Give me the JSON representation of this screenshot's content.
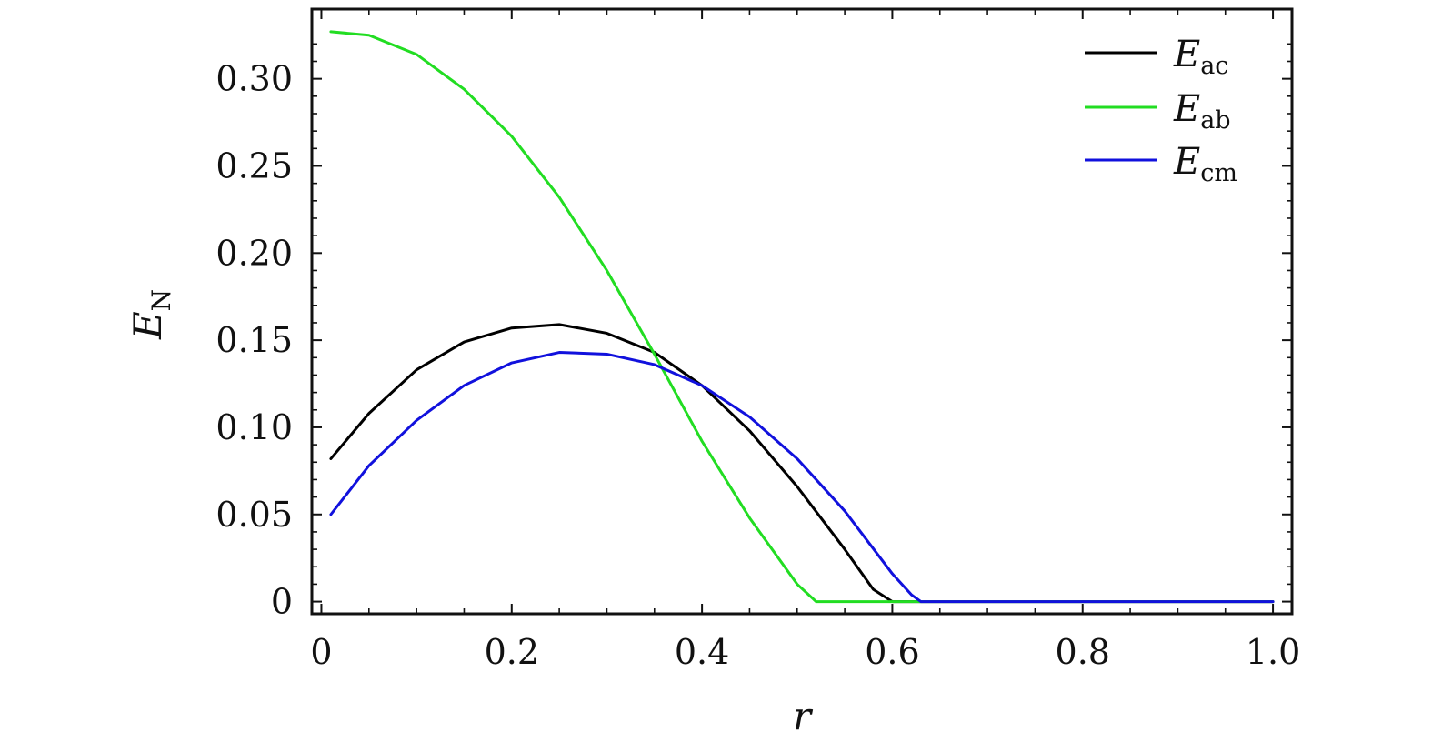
{
  "chart_data": {
    "type": "line",
    "xlabel": "r",
    "ylabel": {
      "main": "E",
      "sub": "N"
    },
    "xlim": [
      -0.01,
      1.02
    ],
    "ylim": [
      -0.007,
      0.34
    ],
    "xticks": [
      0,
      0.2,
      0.4,
      0.6,
      0.8,
      1.0
    ],
    "xtick_labels": [
      "0",
      "0.2",
      "0.4",
      "0.6",
      "0.8",
      "1.0"
    ],
    "yticks": [
      0,
      0.05,
      0.1,
      0.15,
      0.2,
      0.25,
      0.3
    ],
    "ytick_labels": [
      "0",
      "0.05",
      "0.10",
      "0.15",
      "0.20",
      "0.25",
      "0.30"
    ],
    "grid": false,
    "legend_position": "top-right",
    "series": [
      {
        "name": "E_ac",
        "legend_main": "E",
        "legend_sub": "ac",
        "color": "#000000",
        "x": [
          0.01,
          0.05,
          0.1,
          0.15,
          0.2,
          0.25,
          0.3,
          0.35,
          0.4,
          0.45,
          0.5,
          0.55,
          0.58,
          0.6,
          0.65,
          0.7,
          0.75,
          0.8,
          0.85,
          0.9,
          0.95,
          1.0
        ],
        "y": [
          0.082,
          0.108,
          0.133,
          0.149,
          0.157,
          0.159,
          0.154,
          0.143,
          0.124,
          0.098,
          0.066,
          0.03,
          0.007,
          0.0,
          0.0,
          0.0,
          0.0,
          0.0,
          0.0,
          0.0,
          0.0,
          0.0
        ]
      },
      {
        "name": "E_ab",
        "legend_main": "E",
        "legend_sub": "ab",
        "color": "#22dd22",
        "x": [
          0.01,
          0.05,
          0.1,
          0.15,
          0.2,
          0.25,
          0.3,
          0.35,
          0.4,
          0.45,
          0.5,
          0.52,
          0.55,
          0.6,
          0.65,
          0.7,
          0.75,
          0.8,
          0.85,
          0.9,
          0.95,
          1.0
        ],
        "y": [
          0.327,
          0.325,
          0.314,
          0.294,
          0.267,
          0.232,
          0.19,
          0.142,
          0.092,
          0.048,
          0.01,
          0.0,
          0.0,
          0.0,
          0.0,
          0.0,
          0.0,
          0.0,
          0.0,
          0.0,
          0.0,
          0.0
        ]
      },
      {
        "name": "E_cm",
        "legend_main": "E",
        "legend_sub": "cm",
        "color": "#1111dd",
        "x": [
          0.01,
          0.05,
          0.1,
          0.15,
          0.2,
          0.25,
          0.3,
          0.35,
          0.4,
          0.45,
          0.5,
          0.55,
          0.6,
          0.62,
          0.63,
          0.65,
          0.7,
          0.75,
          0.8,
          0.85,
          0.9,
          0.95,
          1.0
        ],
        "y": [
          0.05,
          0.078,
          0.104,
          0.124,
          0.137,
          0.143,
          0.142,
          0.136,
          0.124,
          0.106,
          0.082,
          0.052,
          0.016,
          0.004,
          0.0,
          0.0,
          0.0,
          0.0,
          0.0,
          0.0,
          0.0,
          0.0,
          0.0
        ]
      }
    ]
  }
}
